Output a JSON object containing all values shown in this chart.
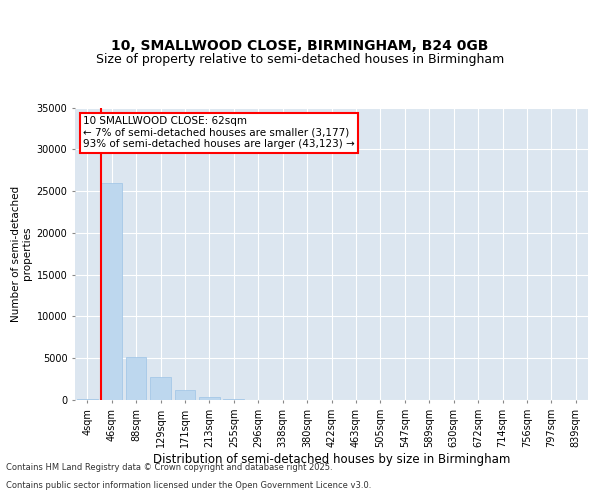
{
  "title_line1": "10, SMALLWOOD CLOSE, BIRMINGHAM, B24 0GB",
  "title_line2": "Size of property relative to semi-detached houses in Birmingham",
  "xlabel": "Distribution of semi-detached houses by size in Birmingham",
  "ylabel": "Number of semi-detached\nproperties",
  "categories": [
    "4sqm",
    "46sqm",
    "88sqm",
    "129sqm",
    "171sqm",
    "213sqm",
    "255sqm",
    "296sqm",
    "338sqm",
    "380sqm",
    "422sqm",
    "463sqm",
    "505sqm",
    "547sqm",
    "589sqm",
    "630sqm",
    "672sqm",
    "714sqm",
    "756sqm",
    "797sqm",
    "839sqm"
  ],
  "values": [
    150,
    26000,
    5200,
    2700,
    1150,
    380,
    90,
    45,
    15,
    8,
    4,
    2,
    1,
    1,
    0,
    0,
    0,
    0,
    0,
    0,
    0
  ],
  "bar_color": "#bdd7ee",
  "bar_edge_color": "#9dc3e6",
  "vline_x_index": 1,
  "vline_color": "#ff0000",
  "property_label": "10 SMALLWOOD CLOSE: 62sqm",
  "annotation_line1": "← 7% of semi-detached houses are smaller (3,177)",
  "annotation_line2": "93% of semi-detached houses are larger (43,123) →",
  "annotation_box_color": "#ff0000",
  "ylim": [
    0,
    35000
  ],
  "yticks": [
    0,
    5000,
    10000,
    15000,
    20000,
    25000,
    30000,
    35000
  ],
  "background_color": "#dce6f0",
  "plot_bg_color": "#dce6f0",
  "footer_line1": "Contains HM Land Registry data © Crown copyright and database right 2025.",
  "footer_line2": "Contains public sector information licensed under the Open Government Licence v3.0.",
  "title_fontsize": 10,
  "subtitle_fontsize": 9,
  "tick_fontsize": 7,
  "ylabel_fontsize": 7.5,
  "xlabel_fontsize": 8.5,
  "footer_fontsize": 6,
  "annotation_fontsize": 7.5
}
